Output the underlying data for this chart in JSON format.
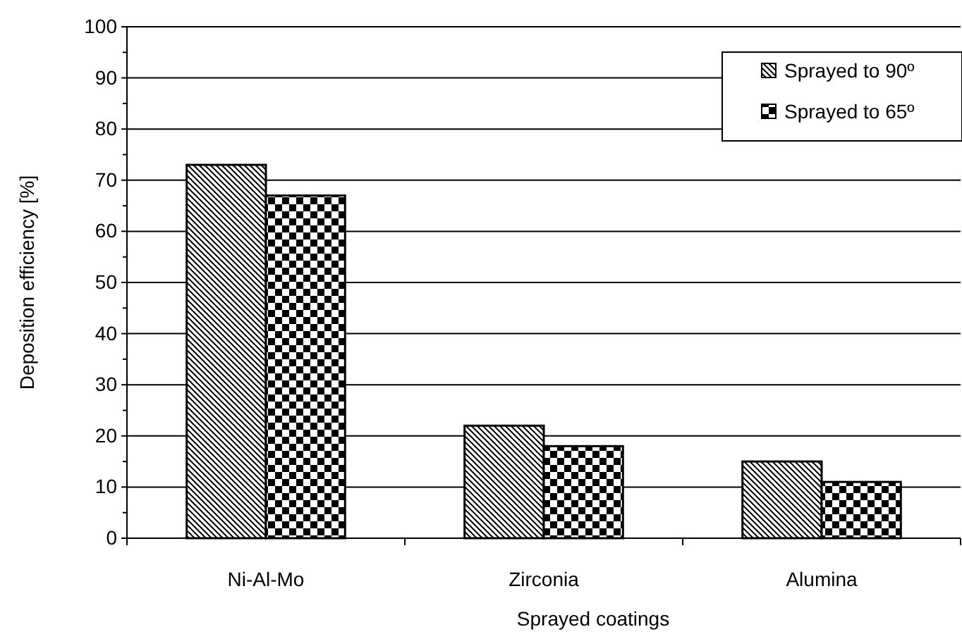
{
  "chart_data": {
    "type": "bar",
    "xlabel": "Sprayed coatings",
    "ylabel": "Deposition efficiency [%]",
    "categories": [
      "Ni-Al-Mo",
      "Zirconia",
      "Alumina"
    ],
    "series": [
      {
        "name": "Sprayed to 90º",
        "color": "#000000",
        "values": [
          73,
          22,
          15
        ]
      },
      {
        "name": "Sprayed to 65º",
        "color": "#000000",
        "values": [
          67,
          18,
          11
        ]
      }
    ],
    "ylim": [
      0,
      100
    ],
    "yticks": [
      0,
      {
        "value": 5,
        "label": null
      },
      10,
      {
        "value": 15,
        "label": null
      },
      20,
      {
        "value": 25,
        "label": null
      },
      30,
      {
        "value": 35,
        "label": null
      },
      40,
      {
        "value": 45,
        "label": null
      },
      50,
      {
        "value": 55,
        "label": null
      },
      60,
      {
        "value": 65,
        "label": null
      },
      70,
      {
        "value": 75,
        "label": null
      },
      80,
      {
        "value": 85,
        "label": null
      },
      90,
      {
        "value": 95,
        "label": null
      },
      100
    ],
    "grid": "y",
    "legend": "top right"
  }
}
